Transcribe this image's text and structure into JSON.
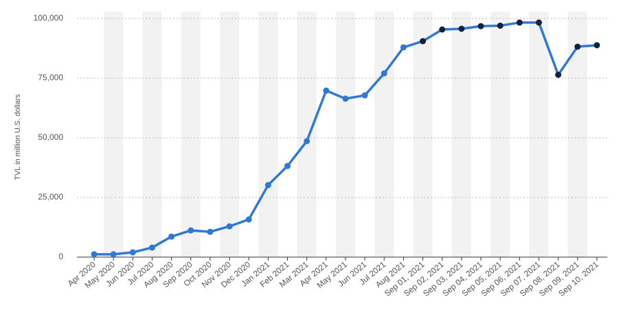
{
  "chart_data": {
    "type": "line",
    "y_label": "TVL in million U.S. dollars",
    "categories": [
      "Apr 2020",
      "May 2020",
      "Jun 2020",
      "Jul 2020",
      "Aug 2020",
      "Sep 2020",
      "Oct 2020",
      "Nov 2020",
      "Dec 2020",
      "Jan 2021",
      "Feb 2021",
      "Mar 2021",
      "Apr 2021",
      "May 2021",
      "Jun 2021",
      "Jul 2021",
      "Aug 2021",
      "Sep 01, 2021",
      "Sep 02, 2021",
      "Sep 03, 2021",
      "Sep 04, 2021",
      "Sep 05, 2021",
      "Sep 06, 2021",
      "Sep 07, 2021",
      "Sep 08, 2021",
      "Sep 09, 2021",
      "Sep 10, 2021"
    ],
    "series": [
      {
        "color": "#2f78d6",
        "values": [
          1200,
          1200,
          2000,
          4000,
          8600,
          11200,
          10600,
          12900,
          15800,
          30200,
          38200,
          48600,
          69800,
          66400,
          67800,
          77000,
          87900,
          90500,
          95400,
          95700,
          96800,
          97000,
          98300,
          98300,
          76400,
          88200,
          88800
        ],
        "point_colors": [
          "#2f78d6",
          "#2f78d6",
          "#2f78d6",
          "#2f78d6",
          "#2f78d6",
          "#2f78d6",
          "#2f78d6",
          "#2f78d6",
          "#2f78d6",
          "#2f78d6",
          "#2f78d6",
          "#2f78d6",
          "#2f78d6",
          "#2f78d6",
          "#2f78d6",
          "#2f78d6",
          "#2f78d6",
          "#14213d",
          "#14213d",
          "#14213d",
          "#14213d",
          "#14213d",
          "#14213d",
          "#14213d",
          "#14213d",
          "#14213d",
          "#14213d"
        ]
      }
    ],
    "ylim": [
      0,
      100000
    ],
    "yticks": [
      0,
      {
        "value": 25000,
        "label": "25,000"
      },
      {
        "value": 50000,
        "label": "50,000"
      },
      {
        "value": 75000,
        "label": "75,000"
      },
      {
        "value": 100000,
        "label": "100,000"
      }
    ],
    "grid": true
  }
}
